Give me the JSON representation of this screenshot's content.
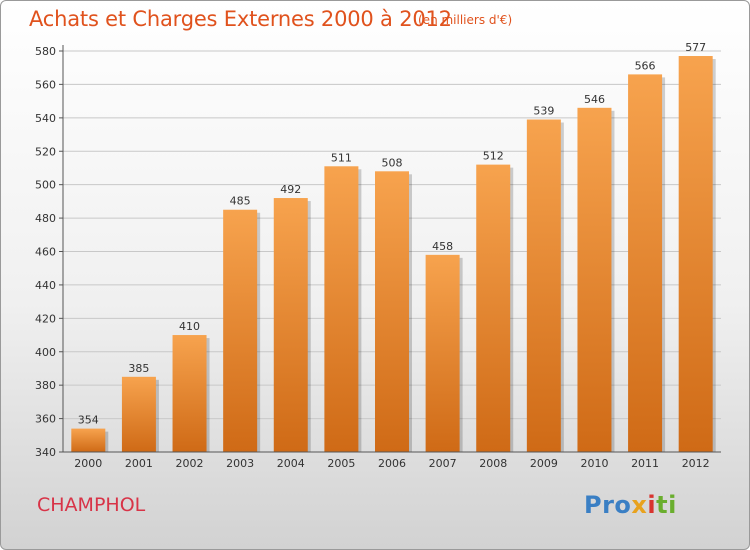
{
  "header": {
    "title": "Achats et Charges Externes 2000 à 2012",
    "unit": "(en milliers d'€)"
  },
  "footer": {
    "city": "CHAMPHOL",
    "logo_parts": [
      "Pro",
      "x",
      "i",
      "ti"
    ]
  },
  "colors": {
    "title": "#e0521d",
    "city": "#d83347",
    "bar_top": "#f7a34e",
    "bar_bottom": "#cf6a16"
  },
  "chart_data": {
    "type": "bar",
    "title": "Achats et Charges Externes 2000 à 2012",
    "categories": [
      "2000",
      "2001",
      "2002",
      "2003",
      "2004",
      "2005",
      "2006",
      "2007",
      "2008",
      "2009",
      "2010",
      "2011",
      "2012"
    ],
    "values": [
      354,
      385,
      410,
      485,
      492,
      511,
      508,
      458,
      512,
      539,
      546,
      566,
      577
    ],
    "ylim": [
      340,
      580
    ],
    "yticks": [
      340,
      360,
      380,
      400,
      420,
      440,
      460,
      480,
      500,
      520,
      540,
      560,
      580
    ],
    "grid": true,
    "xlabel": "",
    "ylabel": ""
  }
}
